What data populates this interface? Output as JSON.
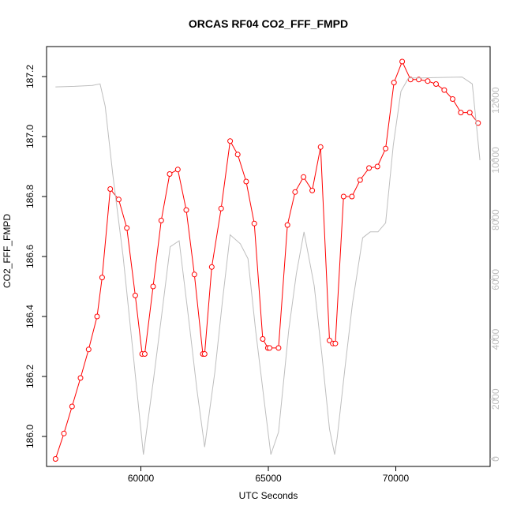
{
  "chart_data": {
    "type": "line",
    "title": "ORCAS RF04 CO2_FFF_FMPD",
    "xlabel": "UTC Seconds",
    "ylabel": "CO2_FFF_FMPD",
    "xlim": [
      56300,
      73700
    ],
    "ylim": [
      185.9,
      187.3
    ],
    "x_ticks": [
      60000,
      65000,
      70000
    ],
    "y_ticks": [
      186.0,
      186.2,
      186.4,
      186.6,
      186.8,
      187.0,
      187.2
    ],
    "y2_ticks": [
      0,
      2000,
      4000,
      6000,
      8000,
      10000,
      12000
    ],
    "y2lim": [
      -250,
      13800
    ],
    "grid": false,
    "series": [
      {
        "color": "#ff0000",
        "axis": "left",
        "marker": "circle",
        "x": [
          56650,
          56980,
          57300,
          57630,
          57950,
          58280,
          58480,
          58800,
          59130,
          59450,
          59780,
          60050,
          60150,
          60480,
          60800,
          61130,
          61450,
          61780,
          62100,
          62430,
          62500,
          62780,
          63150,
          63500,
          63800,
          64130,
          64450,
          64780,
          64980,
          65050,
          65400,
          65750,
          66050,
          66380,
          66720,
          67050,
          67400,
          67530,
          67630,
          67950,
          68280,
          68600,
          68950,
          69280,
          69600,
          69930,
          70250,
          70580,
          70900,
          71250,
          71580,
          71900,
          72230,
          72550,
          72900,
          73230
        ],
        "y": [
          185.925,
          186.01,
          186.1,
          186.195,
          186.29,
          186.4,
          186.53,
          186.825,
          186.79,
          186.695,
          186.47,
          186.275,
          186.275,
          186.5,
          186.72,
          186.875,
          186.89,
          186.755,
          186.54,
          186.275,
          186.275,
          186.565,
          186.76,
          186.985,
          186.94,
          186.85,
          186.71,
          186.325,
          186.295,
          186.295,
          186.295,
          186.705,
          186.815,
          186.865,
          186.82,
          186.965,
          186.32,
          186.31,
          186.31,
          186.8,
          186.8,
          186.855,
          186.895,
          186.9,
          186.96,
          187.18,
          187.25,
          187.19,
          187.19,
          187.185,
          187.175,
          187.155,
          187.125,
          187.08,
          187.08,
          187.045
        ]
      },
      {
        "color": "#bebebe",
        "axis": "right",
        "x": [
          56650,
          57400,
          58100,
          58400,
          58600,
          58900,
          59300,
          59700,
          60100,
          60500,
          60800,
          61150,
          61500,
          61900,
          62200,
          62500,
          62900,
          63200,
          63500,
          63900,
          64200,
          64500,
          64900,
          65100,
          65400,
          65800,
          66100,
          66400,
          66800,
          67100,
          67400,
          67600,
          67700,
          68000,
          68300,
          68700,
          69000,
          69300,
          69600,
          69900,
          70200,
          70500,
          71000,
          71500,
          72000,
          72600,
          73000,
          73300
        ],
        "y": [
          12450,
          12470,
          12500,
          12550,
          11800,
          9500,
          6800,
          3500,
          150,
          2700,
          4700,
          7100,
          7300,
          4500,
          2300,
          400,
          2900,
          5300,
          7500,
          7200,
          6700,
          4300,
          1500,
          150,
          900,
          4300,
          6200,
          7600,
          5800,
          3500,
          1000,
          150,
          700,
          3000,
          5200,
          7400,
          7600,
          7600,
          7900,
          10500,
          12300,
          12750,
          12750,
          12760,
          12770,
          12780,
          12550,
          10000
        ]
      }
    ]
  }
}
